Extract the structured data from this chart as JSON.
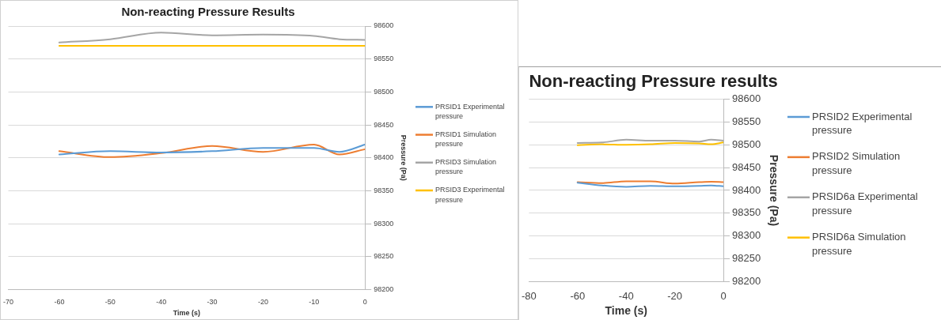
{
  "chart_data": [
    {
      "type": "line",
      "title": "Non-reacting Pressure Results",
      "xlabel": "Time (s)",
      "ylabel": "Pressure (Pa)",
      "x": [
        -60,
        -50,
        -40,
        -30,
        -20,
        -10,
        -5,
        0
      ],
      "series": [
        {
          "name": "PRSID1 Experimental pressure",
          "color": "#5b9bd5",
          "values": [
            98405,
            98410,
            98408,
            98410,
            98415,
            98415,
            98409,
            98420
          ]
        },
        {
          "name": "PRSID1 Simulation pressure",
          "color": "#ed7d31",
          "values": [
            98410,
            98401,
            98407,
            98418,
            98409,
            98420,
            98405,
            98413
          ]
        },
        {
          "name": "PRSID3 Simulation pressure",
          "color": "#a5a5a5",
          "values": [
            98575,
            98580,
            98590,
            98586,
            98587,
            98585,
            98580,
            98579
          ]
        },
        {
          "name": "PRSID3 Experimental pressure",
          "color": "#ffc000",
          "values": [
            98570,
            98570,
            98570,
            98570,
            98570,
            98570,
            98570,
            98570
          ]
        }
      ],
      "xlim": [
        -70,
        0
      ],
      "xticks": [
        -70,
        -60,
        -50,
        -40,
        -30,
        -20,
        -10,
        0
      ],
      "ylim": [
        98200,
        98600
      ],
      "yticks": [
        98200,
        98250,
        98300,
        98350,
        98400,
        98450,
        98500,
        98550,
        98600
      ],
      "grid": "y",
      "legend": "right",
      "marker": "none",
      "line_style": "solid"
    },
    {
      "type": "line",
      "title": "Non-reacting Pressure results",
      "xlabel": "Time (s)",
      "ylabel": "Pressure (Pa)",
      "x": [
        -60,
        -50,
        -40,
        -30,
        -20,
        -10,
        -5,
        0
      ],
      "series": [
        {
          "name": "PRSID2 Experimental pressure",
          "color": "#5b9bd5",
          "values": [
            98417,
            98411,
            98408,
            98410,
            98409,
            98410,
            98411,
            98409
          ]
        },
        {
          "name": "PRSID2 Simulation pressure",
          "color": "#ed7d31",
          "values": [
            98418,
            98416,
            98420,
            98420,
            98415,
            98418,
            98419,
            98418
          ]
        },
        {
          "name": "PRSID6a Experimental pressure",
          "color": "#a5a5a5",
          "values": [
            98504,
            98505,
            98511,
            98509,
            98509,
            98507,
            98511,
            98509
          ]
        },
        {
          "name": "PRSID6a Simulation pressure",
          "color": "#ffc000",
          "values": [
            98499,
            98501,
            98500,
            98501,
            98504,
            98503,
            98501,
            98505
          ]
        }
      ],
      "xlim": [
        -80,
        0
      ],
      "xticks": [
        -80,
        -60,
        -40,
        -20,
        0
      ],
      "ylim": [
        98200,
        98600
      ],
      "yticks": [
        98200,
        98250,
        98300,
        98350,
        98400,
        98450,
        98500,
        98550,
        98600
      ],
      "grid": "y",
      "legend": "right",
      "marker": "none",
      "line_style": "solid"
    }
  ]
}
